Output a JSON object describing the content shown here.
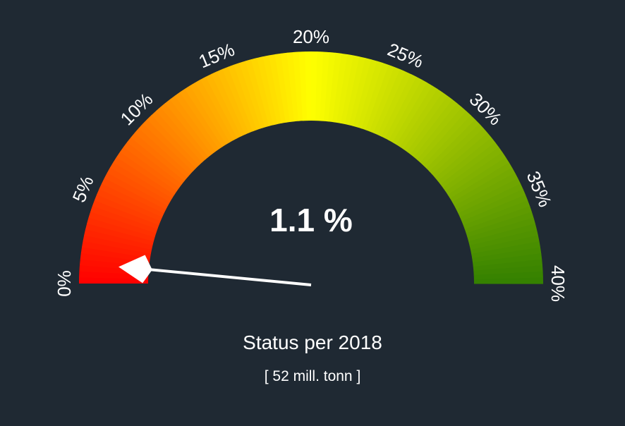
{
  "chart_data": {
    "type": "gauge",
    "value": 1.1,
    "value_label": "1.1 %",
    "min": 0,
    "max": 40,
    "ticks": [
      {
        "value": 0,
        "label": "0%"
      },
      {
        "value": 5,
        "label": "5%"
      },
      {
        "value": 10,
        "label": "10%"
      },
      {
        "value": 15,
        "label": "15%"
      },
      {
        "value": 20,
        "label": "20%"
      },
      {
        "value": 25,
        "label": "25%"
      },
      {
        "value": 30,
        "label": "30%"
      },
      {
        "value": 35,
        "label": "35%"
      },
      {
        "value": 40,
        "label": "40%"
      }
    ],
    "color_stops": [
      {
        "value": 0,
        "color": "#ff0000"
      },
      {
        "value": 20,
        "color": "#ffff00"
      },
      {
        "value": 40,
        "color": "#338000"
      }
    ]
  },
  "caption": {
    "title": "Status per 2018",
    "subtitle": "[ 52 mill. tonn ]"
  },
  "colors": {
    "background": "#1f2933",
    "text": "#ffffff",
    "needle": "#ffffff"
  }
}
